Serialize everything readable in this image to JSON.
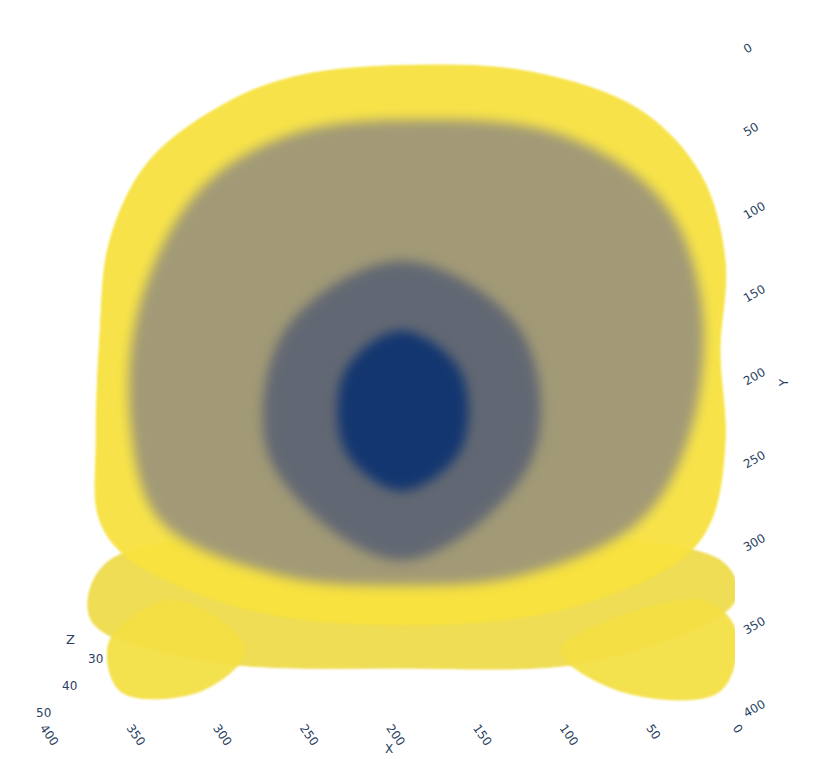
{
  "chart_data": {
    "type": "isosurface",
    "x_label": "X",
    "y_label": "Y",
    "z_label": "Z",
    "xlim": [
      400,
      0
    ],
    "xticks": [
      400,
      350,
      300,
      250,
      200,
      150,
      100,
      50,
      0
    ],
    "ylim": [
      0,
      400
    ],
    "yticks": [
      0,
      50,
      100,
      150,
      200,
      250,
      300,
      350,
      400
    ],
    "zlim": [
      30,
      50
    ],
    "zticks": [
      30,
      40,
      50
    ],
    "surfaces": [
      {
        "color": "#eedb4c",
        "x": [
          361,
          9,
          0,
          78,
          193,
          309,
          372
        ],
        "y": [
          307,
          307,
          331,
          367,
          372,
          367,
          343
        ]
      },
      {
        "color": "#f3df45",
        "x": [
          361,
          323,
          283,
          309,
          355
        ],
        "y": [
          355,
          331,
          361,
          386,
          386
        ]
      },
      {
        "color": "#f3df45",
        "x": [
          101,
          20,
          0,
          9,
          66
        ],
        "y": [
          361,
          331,
          349,
          386,
          386
        ]
      },
      {
        "color": "#f7e23f",
        "x": [
          190,
          118,
          55,
          20,
          6,
          9,
          6,
          14,
          32,
          101,
          193,
          280,
          349,
          367,
          369,
          367,
          361,
          338,
          291,
          251
        ],
        "y": [
          9,
          13,
          36,
          75,
          127,
          181,
          235,
          283,
          307,
          337,
          346,
          337,
          307,
          283,
          235,
          175,
          114,
          66,
          30,
          15
        ]
      },
      {
        "color": "#9d9679",
        "x": [
          187,
          101,
          43,
          20,
          26,
          55,
          124,
          193,
          263,
          332,
          349,
          343,
          309,
          257
        ],
        "y": [
          42,
          51,
          90,
          151,
          229,
          283,
          316,
          322,
          316,
          283,
          223,
          151,
          84,
          51
        ]
      },
      {
        "color": "#5f6573",
        "x": [
          193,
          124,
          118,
          193,
          268,
          260
        ],
        "y": [
          127,
          169,
          247,
          307,
          247,
          169
        ]
      },
      {
        "color": "#0f3470",
        "x": [
          193,
          159,
          159,
          193,
          225,
          225
        ],
        "y": [
          169,
          193,
          241,
          265,
          241,
          193
        ]
      }
    ]
  }
}
